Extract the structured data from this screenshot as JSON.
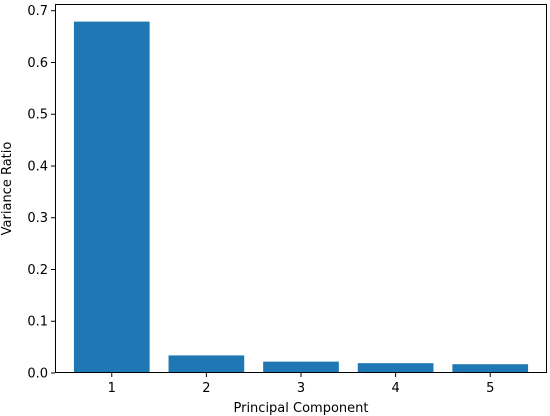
{
  "chart_data": {
    "type": "bar",
    "categories": [
      "1",
      "2",
      "3",
      "4",
      "5"
    ],
    "values": [
      0.679,
      0.034,
      0.022,
      0.019,
      0.017
    ],
    "title": "",
    "xlabel": "Principal Component",
    "ylabel": "Variance Ratio",
    "ylim": [
      0,
      0.713
    ],
    "yticks": [
      0.0,
      0.1,
      0.2,
      0.3,
      0.4,
      0.5,
      0.6,
      0.7
    ],
    "ytick_labels": [
      "0.0",
      "0.1",
      "0.2",
      "0.3",
      "0.4",
      "0.5",
      "0.6",
      "0.7"
    ],
    "grid": false,
    "bar_color": "#1f77b4"
  }
}
